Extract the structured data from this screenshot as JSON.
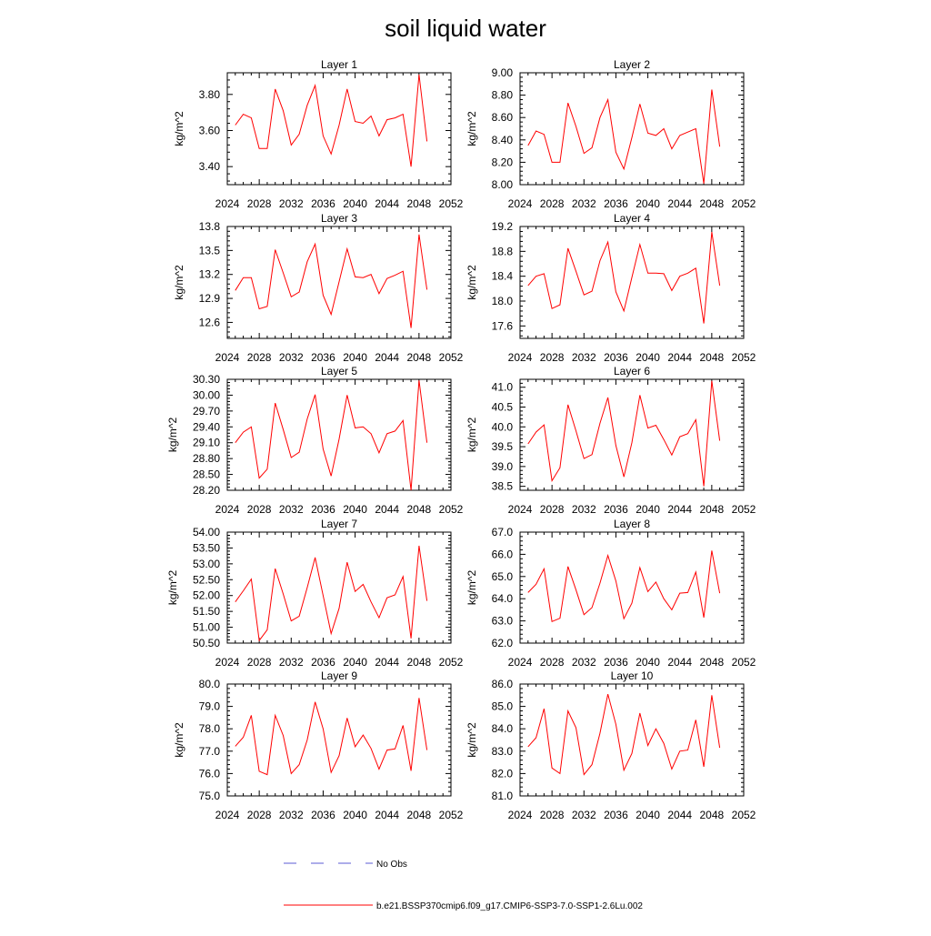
{
  "title": "soil liquid water",
  "colors": {
    "model": "#ff0000",
    "obs": "#5b5bd6",
    "axis": "#000000"
  },
  "legend": {
    "obs_label": "No Obs",
    "model_label": "b.e21.BSSP370cmip6.f09_g17.CMIP6-SSP3-7.0-SSP1-2.6Lu.002"
  },
  "chart_data": [
    {
      "type": "line",
      "title": "Layer 1",
      "ylabel": "kg/m^2",
      "xlim": [
        2024,
        2052
      ],
      "xticks": [
        2024,
        2028,
        2032,
        2036,
        2040,
        2044,
        2048,
        2052
      ],
      "ylim": [
        3.3,
        3.92
      ],
      "yticks": [
        "3.40",
        "3.60",
        "3.80"
      ],
      "series": [
        {
          "x": [
            2025,
            2026,
            2027,
            2028,
            2029,
            2030,
            2031,
            2032,
            2033,
            2034,
            2035,
            2036,
            2037,
            2038,
            2039,
            2040,
            2041,
            2042,
            2043,
            2044,
            2045,
            2046,
            2047,
            2048,
            2049
          ],
          "values": [
            3.63,
            3.69,
            3.67,
            3.5,
            3.5,
            3.83,
            3.71,
            3.52,
            3.58,
            3.74,
            3.85,
            3.57,
            3.47,
            3.63,
            3.83,
            3.65,
            3.64,
            3.68,
            3.57,
            3.66,
            3.67,
            3.69,
            3.4,
            3.91,
            3.54
          ]
        }
      ]
    },
    {
      "type": "line",
      "title": "Layer 2",
      "ylabel": "kg/m^2",
      "xlim": [
        2024,
        2052
      ],
      "xticks": [
        2024,
        2028,
        2032,
        2036,
        2040,
        2044,
        2048,
        2052
      ],
      "ylim": [
        8.0,
        9.0
      ],
      "yticks": [
        "8.00",
        "8.20",
        "8.40",
        "8.60",
        "8.80",
        "9.00"
      ],
      "series": [
        {
          "x": [
            2025,
            2026,
            2027,
            2028,
            2029,
            2030,
            2031,
            2032,
            2033,
            2034,
            2035,
            2036,
            2037,
            2038,
            2039,
            2040,
            2041,
            2042,
            2043,
            2044,
            2045,
            2046,
            2047,
            2048,
            2049
          ],
          "values": [
            8.35,
            8.48,
            8.45,
            8.2,
            8.2,
            8.73,
            8.52,
            8.28,
            8.33,
            8.6,
            8.76,
            8.29,
            8.14,
            8.42,
            8.72,
            8.46,
            8.44,
            8.5,
            8.32,
            8.44,
            8.47,
            8.5,
            8.01,
            8.85,
            8.34
          ]
        }
      ]
    },
    {
      "type": "line",
      "title": "Layer 3",
      "ylabel": "kg/m^2",
      "xlim": [
        2024,
        2052
      ],
      "xticks": [
        2024,
        2028,
        2032,
        2036,
        2040,
        2044,
        2048,
        2052
      ],
      "ylim": [
        12.4,
        13.8
      ],
      "yticks": [
        "12.6",
        "12.9",
        "13.2",
        "13.5",
        "13.8"
      ],
      "series": [
        {
          "x": [
            2025,
            2026,
            2027,
            2028,
            2029,
            2030,
            2031,
            2032,
            2033,
            2034,
            2035,
            2036,
            2037,
            2038,
            2039,
            2040,
            2041,
            2042,
            2043,
            2044,
            2045,
            2046,
            2047,
            2048,
            2049
          ],
          "values": [
            13.0,
            13.16,
            13.16,
            12.77,
            12.8,
            13.51,
            13.22,
            12.92,
            12.98,
            13.36,
            13.58,
            12.94,
            12.7,
            13.11,
            13.52,
            13.17,
            13.16,
            13.2,
            12.96,
            13.15,
            13.19,
            13.24,
            12.53,
            13.7,
            13.01
          ]
        }
      ]
    },
    {
      "type": "line",
      "title": "Layer 4",
      "ylabel": "kg/m^2",
      "xlim": [
        2024,
        2052
      ],
      "xticks": [
        2024,
        2028,
        2032,
        2036,
        2040,
        2044,
        2048,
        2052
      ],
      "ylim": [
        17.4,
        19.2
      ],
      "yticks": [
        "17.6",
        "18.0",
        "18.4",
        "18.8",
        "19.2"
      ],
      "series": [
        {
          "x": [
            2025,
            2026,
            2027,
            2028,
            2029,
            2030,
            2031,
            2032,
            2033,
            2034,
            2035,
            2036,
            2037,
            2038,
            2039,
            2040,
            2041,
            2042,
            2043,
            2044,
            2045,
            2046,
            2047,
            2048,
            2049
          ],
          "values": [
            18.25,
            18.4,
            18.44,
            17.88,
            17.94,
            18.85,
            18.48,
            18.1,
            18.16,
            18.65,
            18.95,
            18.15,
            17.84,
            18.38,
            18.91,
            18.45,
            18.45,
            18.44,
            18.17,
            18.4,
            18.45,
            18.53,
            17.64,
            19.11,
            18.25
          ]
        }
      ]
    },
    {
      "type": "line",
      "title": "Layer 5",
      "ylabel": "kg/m^2",
      "xlim": [
        2024,
        2052
      ],
      "xticks": [
        2024,
        2028,
        2032,
        2036,
        2040,
        2044,
        2048,
        2052
      ],
      "ylim": [
        28.2,
        30.3
      ],
      "yticks": [
        "28.20",
        "28.50",
        "28.80",
        "29.10",
        "29.40",
        "29.70",
        "30.00",
        "30.30"
      ],
      "series": [
        {
          "x": [
            2025,
            2026,
            2027,
            2028,
            2029,
            2030,
            2031,
            2032,
            2033,
            2034,
            2035,
            2036,
            2037,
            2038,
            2039,
            2040,
            2041,
            2042,
            2043,
            2044,
            2045,
            2046,
            2047,
            2048,
            2049
          ],
          "values": [
            29.1,
            29.3,
            29.4,
            28.43,
            28.6,
            29.85,
            29.35,
            28.82,
            28.92,
            29.55,
            30.01,
            28.98,
            28.47,
            29.17,
            30.0,
            29.38,
            29.4,
            29.27,
            28.91,
            29.27,
            29.32,
            29.52,
            28.2,
            30.28,
            29.1
          ]
        }
      ]
    },
    {
      "type": "line",
      "title": "Layer 6",
      "ylabel": "kg/m^2",
      "xlim": [
        2024,
        2052
      ],
      "xticks": [
        2024,
        2028,
        2032,
        2036,
        2040,
        2044,
        2048,
        2052
      ],
      "ylim": [
        38.4,
        41.2
      ],
      "yticks": [
        "38.5",
        "39.0",
        "39.5",
        "40.0",
        "40.5",
        "41.0"
      ],
      "series": [
        {
          "x": [
            2025,
            2026,
            2027,
            2028,
            2029,
            2030,
            2031,
            2032,
            2033,
            2034,
            2035,
            2036,
            2037,
            2038,
            2039,
            2040,
            2041,
            2042,
            2043,
            2044,
            2045,
            2046,
            2047,
            2048,
            2049
          ],
          "values": [
            39.57,
            39.87,
            40.05,
            38.64,
            38.97,
            40.56,
            39.9,
            39.2,
            39.3,
            40.09,
            40.74,
            39.53,
            38.74,
            39.6,
            40.8,
            39.97,
            40.04,
            39.68,
            39.29,
            39.75,
            39.83,
            40.18,
            38.5,
            41.16,
            39.65
          ]
        }
      ]
    },
    {
      "type": "line",
      "title": "Layer 7",
      "ylabel": "kg/m^2",
      "xlim": [
        2024,
        2052
      ],
      "xticks": [
        2024,
        2028,
        2032,
        2036,
        2040,
        2044,
        2048,
        2052
      ],
      "ylim": [
        50.5,
        54.0
      ],
      "yticks": [
        "50.50",
        "51.00",
        "51.50",
        "52.00",
        "52.50",
        "53.00",
        "53.50",
        "54.00"
      ],
      "series": [
        {
          "x": [
            2025,
            2026,
            2027,
            2028,
            2029,
            2030,
            2031,
            2032,
            2033,
            2034,
            2035,
            2036,
            2037,
            2038,
            2039,
            2040,
            2041,
            2042,
            2043,
            2044,
            2045,
            2046,
            2047,
            2048,
            2049
          ],
          "values": [
            51.8,
            52.15,
            52.52,
            50.58,
            50.92,
            52.85,
            52.05,
            51.2,
            51.35,
            52.25,
            53.2,
            52.0,
            50.8,
            51.6,
            53.05,
            52.13,
            52.35,
            51.8,
            51.3,
            51.93,
            52.02,
            52.6,
            50.65,
            53.57,
            51.83
          ]
        }
      ]
    },
    {
      "type": "line",
      "title": "Layer 8",
      "ylabel": "kg/m^2",
      "xlim": [
        2024,
        2052
      ],
      "xticks": [
        2024,
        2028,
        2032,
        2036,
        2040,
        2044,
        2048,
        2052
      ],
      "ylim": [
        62.0,
        67.0
      ],
      "yticks": [
        "62.0",
        "63.0",
        "64.0",
        "65.0",
        "66.0",
        "67.0"
      ],
      "series": [
        {
          "x": [
            2025,
            2026,
            2027,
            2028,
            2029,
            2030,
            2031,
            2032,
            2033,
            2034,
            2035,
            2036,
            2037,
            2038,
            2039,
            2040,
            2041,
            2042,
            2043,
            2044,
            2045,
            2046,
            2047,
            2048,
            2049
          ],
          "values": [
            64.28,
            64.65,
            65.35,
            62.97,
            63.12,
            65.45,
            64.4,
            63.28,
            63.6,
            64.7,
            65.95,
            64.8,
            63.1,
            63.8,
            65.4,
            64.32,
            64.75,
            64.0,
            63.5,
            64.25,
            64.28,
            65.2,
            63.15,
            66.17,
            64.25
          ]
        }
      ]
    },
    {
      "type": "line",
      "title": "Layer 9",
      "ylabel": "kg/m^2",
      "xlim": [
        2024,
        2052
      ],
      "xticks": [
        2024,
        2028,
        2032,
        2036,
        2040,
        2044,
        2048,
        2052
      ],
      "ylim": [
        75.0,
        80.0
      ],
      "yticks": [
        "75.0",
        "76.0",
        "77.0",
        "78.0",
        "79.0",
        "80.0"
      ],
      "series": [
        {
          "x": [
            2025,
            2026,
            2027,
            2028,
            2029,
            2030,
            2031,
            2032,
            2033,
            2034,
            2035,
            2036,
            2037,
            2038,
            2039,
            2040,
            2041,
            2042,
            2043,
            2044,
            2045,
            2046,
            2047,
            2048,
            2049
          ],
          "values": [
            77.22,
            77.62,
            78.6,
            76.1,
            75.95,
            78.6,
            77.7,
            76.0,
            76.4,
            77.5,
            79.2,
            78.0,
            76.05,
            76.8,
            78.48,
            77.2,
            77.72,
            77.12,
            76.2,
            77.05,
            77.1,
            78.15,
            76.12,
            79.38,
            77.05
          ]
        }
      ]
    },
    {
      "type": "line",
      "title": "Layer 10",
      "ylabel": "kg/m^2",
      "xlim": [
        2024,
        2052
      ],
      "xticks": [
        2024,
        2028,
        2032,
        2036,
        2040,
        2044,
        2048,
        2052
      ],
      "ylim": [
        81.0,
        86.0
      ],
      "yticks": [
        "81.0",
        "82.0",
        "83.0",
        "84.0",
        "85.0",
        "86.0"
      ],
      "series": [
        {
          "x": [
            2025,
            2026,
            2027,
            2028,
            2029,
            2030,
            2031,
            2032,
            2033,
            2034,
            2035,
            2036,
            2037,
            2038,
            2039,
            2040,
            2041,
            2042,
            2043,
            2044,
            2045,
            2046,
            2047,
            2048,
            2049
          ],
          "values": [
            83.2,
            83.6,
            84.9,
            82.25,
            82.0,
            84.8,
            84.05,
            81.95,
            82.4,
            83.8,
            85.55,
            84.2,
            82.15,
            82.9,
            84.7,
            83.25,
            84.0,
            83.35,
            82.2,
            83.0,
            83.05,
            84.4,
            82.3,
            85.5,
            83.15
          ]
        }
      ]
    }
  ]
}
